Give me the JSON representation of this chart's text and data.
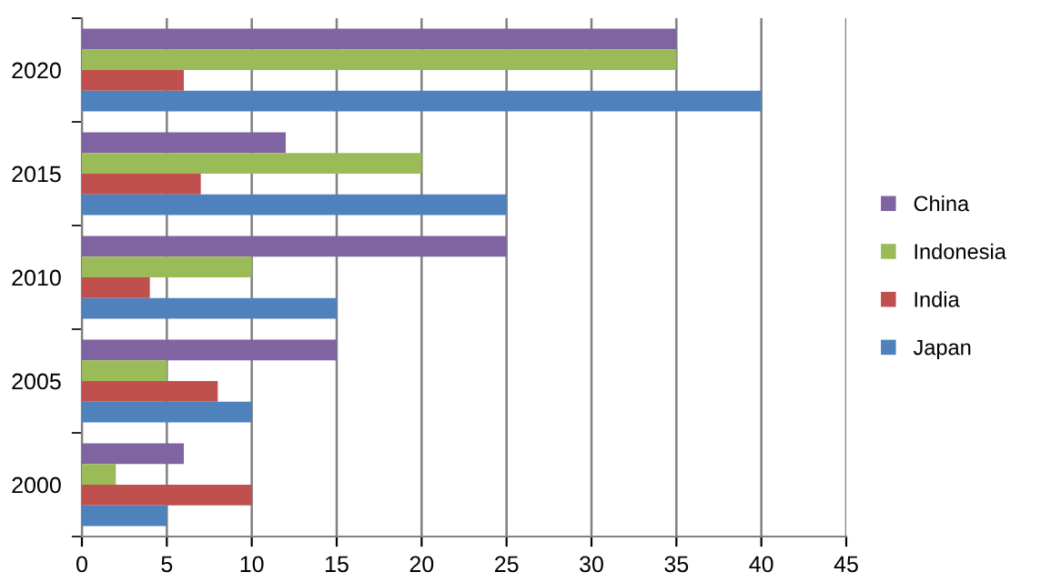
{
  "chart_data": {
    "type": "bar",
    "orientation": "horizontal",
    "categories": [
      "2020",
      "2015",
      "2010",
      "2005",
      "2000"
    ],
    "series": [
      {
        "name": "China",
        "color": "#8064a2",
        "values": [
          35,
          12,
          25,
          15,
          6
        ]
      },
      {
        "name": "Indonesia",
        "color": "#9bbb59",
        "values": [
          35,
          20,
          10,
          5,
          2
        ]
      },
      {
        "name": "India",
        "color": "#c0504d",
        "values": [
          6,
          7,
          4,
          8,
          10
        ]
      },
      {
        "name": "Japan",
        "color": "#4f81bd",
        "values": [
          40,
          25,
          15,
          10,
          5
        ]
      }
    ],
    "xlim": [
      0,
      45
    ],
    "xticks": [
      0,
      5,
      10,
      15,
      20,
      25,
      30,
      35,
      40,
      45
    ],
    "grid": "x",
    "legend": "right"
  }
}
